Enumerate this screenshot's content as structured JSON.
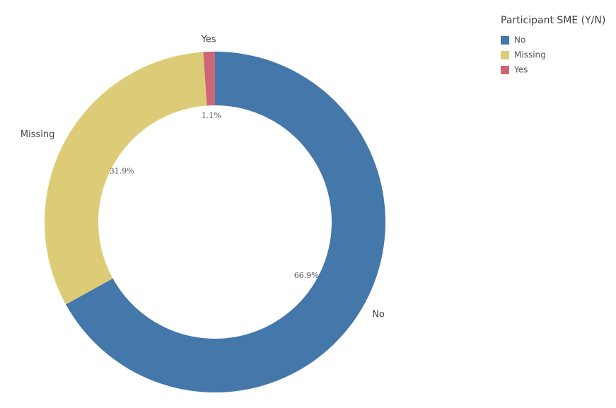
{
  "chart_data": {
    "type": "donut",
    "legend_title": "Participant SME (Y/N)",
    "categories": [
      "No",
      "Missing",
      "Yes"
    ],
    "values": [
      66.9,
      31.9,
      1.1
    ],
    "value_labels": [
      "66.9%",
      "31.9%",
      "1.1%"
    ],
    "colors": [
      "#4477aa",
      "#ddcc77",
      "#cc6677"
    ],
    "legend_position": "top-right"
  }
}
